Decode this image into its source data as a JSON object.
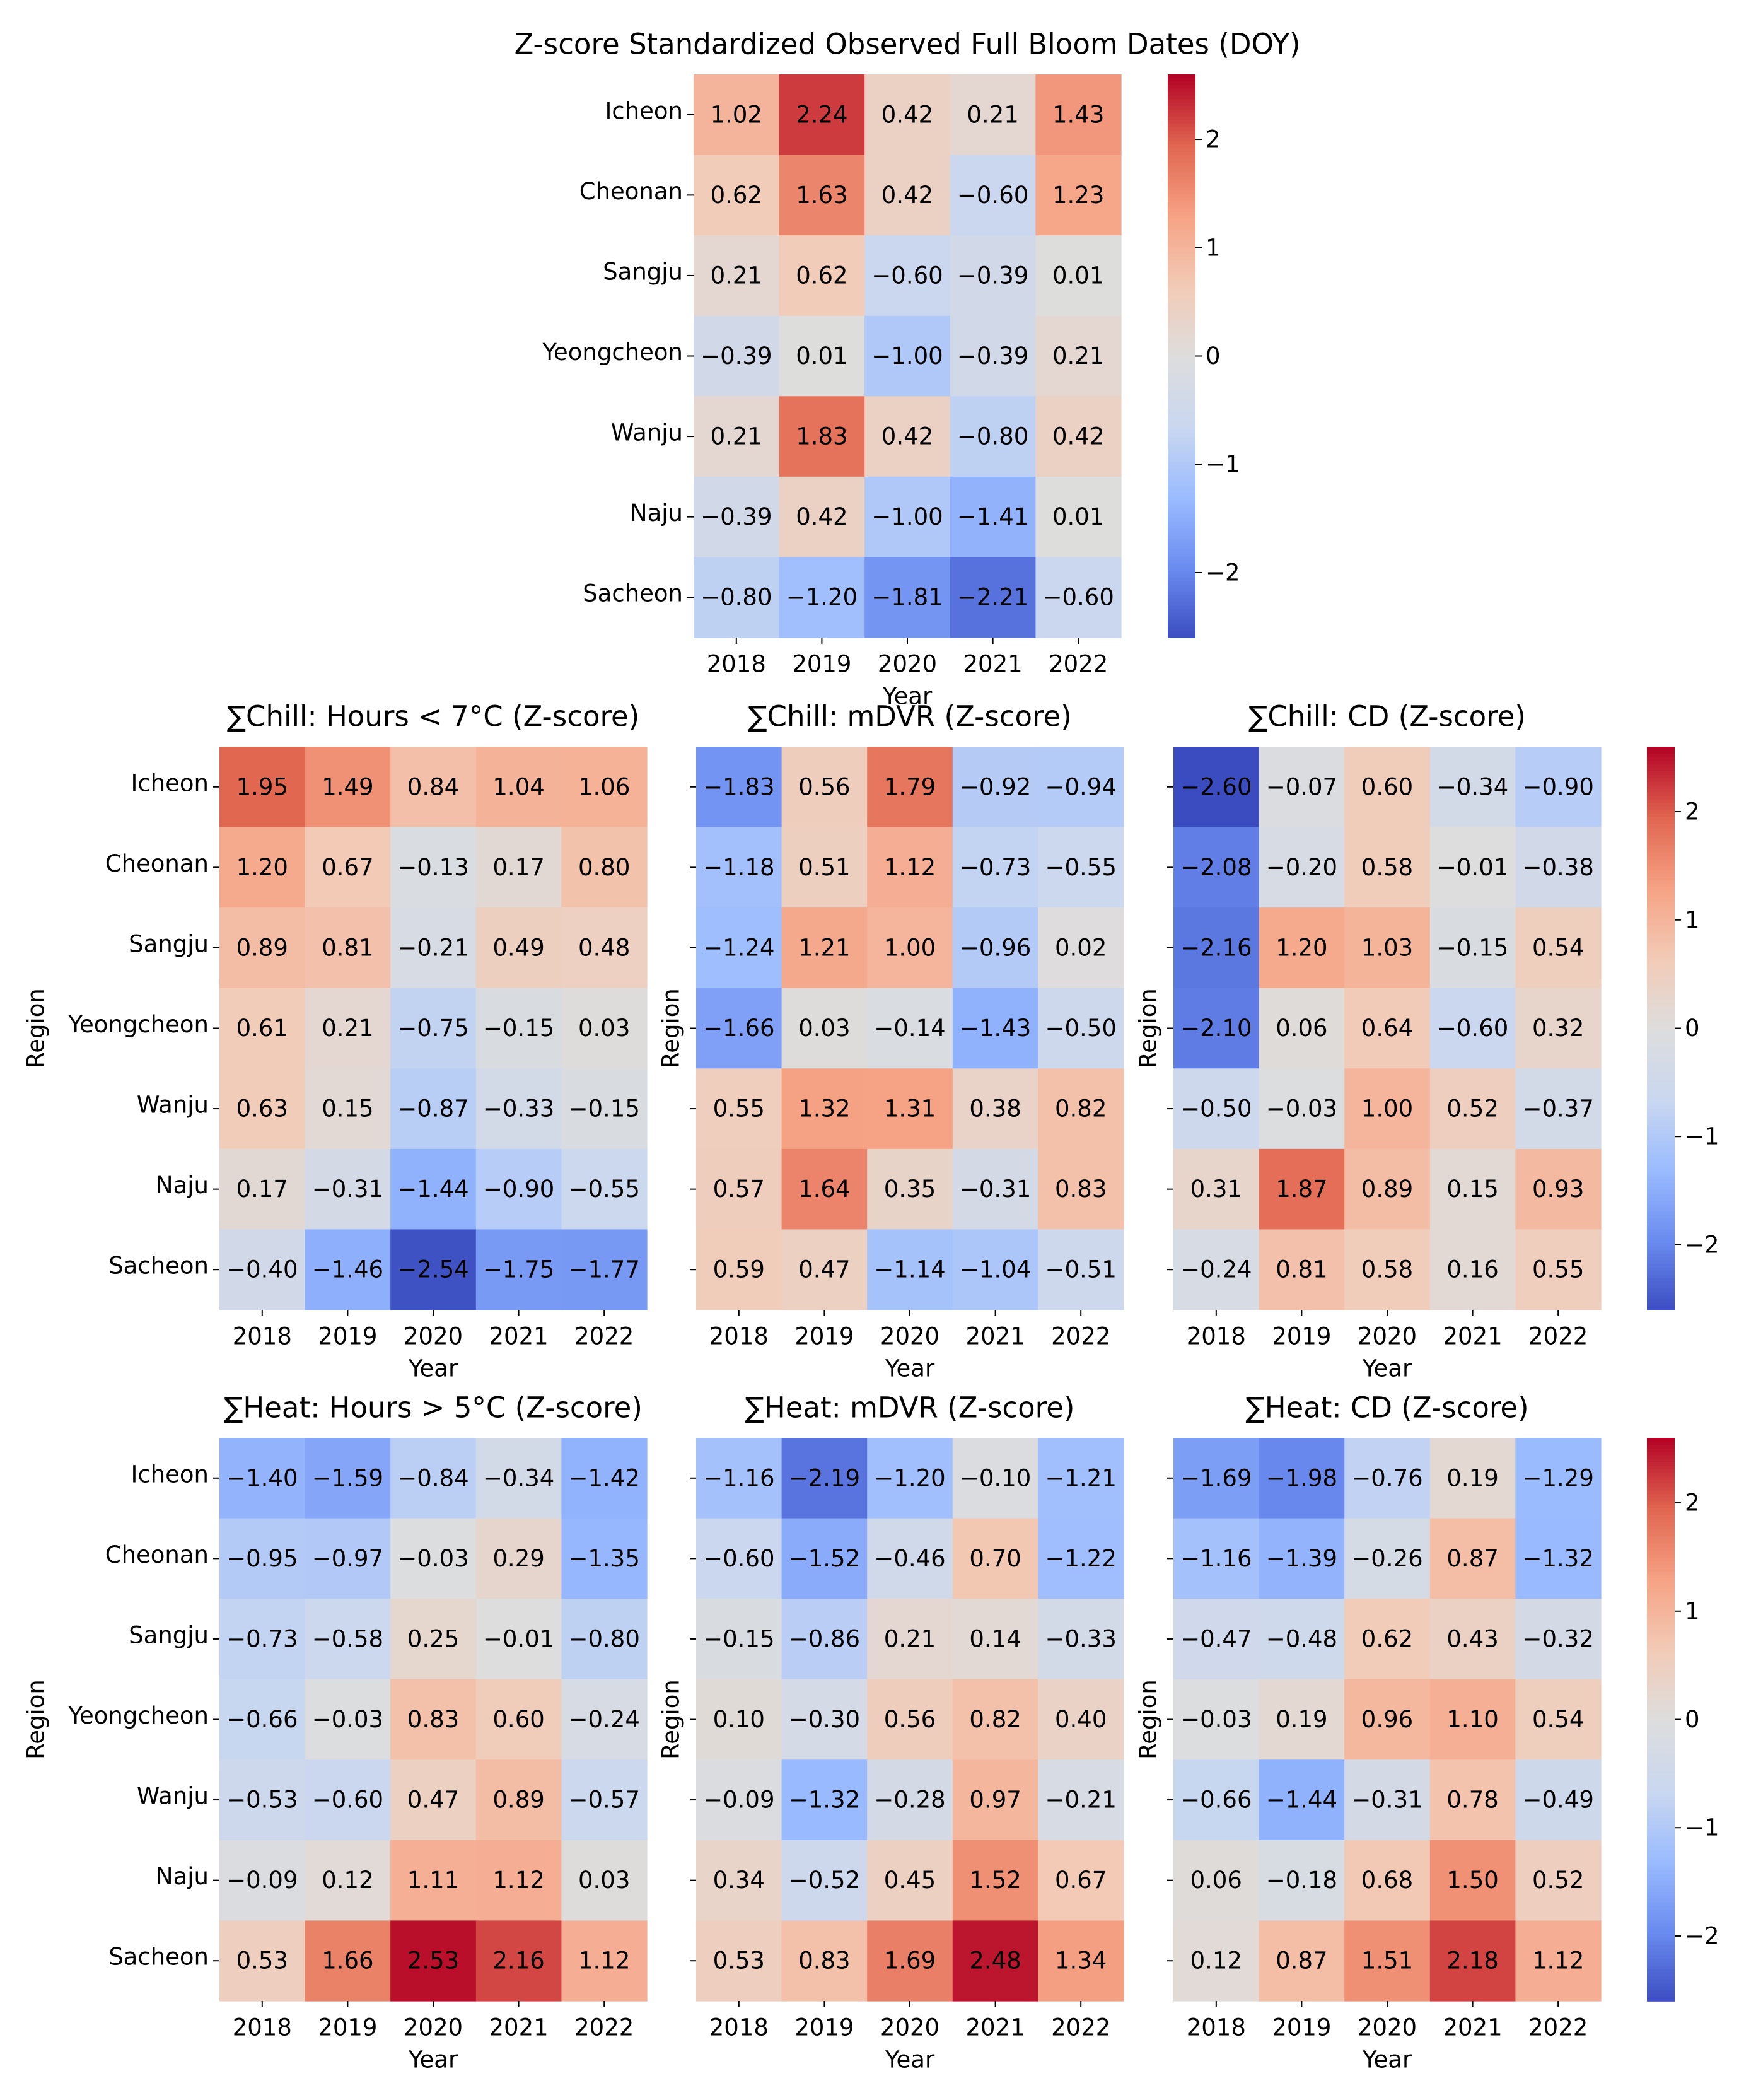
{
  "figure": {
    "colorscale": {
      "vmin": -2.6,
      "vmax": 2.6,
      "stops": [
        "#3b4cc0",
        "#6a8bef",
        "#9abbff",
        "#c9d7f0",
        "#dddddd",
        "#f2cbb7",
        "#f6a385",
        "#e16751",
        "#b40426"
      ]
    }
  },
  "chart_data": [
    {
      "id": "top",
      "type": "heatmap",
      "title": "Z-score Standardized Observed Full Bloom Dates (DOY)",
      "xlabel": "Year",
      "ylabel": "",
      "categories": [
        "2018",
        "2019",
        "2020",
        "2021",
        "2022"
      ],
      "regions": [
        "Icheon",
        "Cheonan",
        "Sangju",
        "Yeongcheon",
        "Wanju",
        "Naju",
        "Sacheon"
      ],
      "values": [
        [
          1.02,
          2.24,
          0.42,
          0.21,
          1.43
        ],
        [
          0.62,
          1.63,
          0.42,
          -0.6,
          1.23
        ],
        [
          0.21,
          0.62,
          -0.6,
          -0.39,
          0.01
        ],
        [
          -0.39,
          0.01,
          -1.0,
          -0.39,
          0.21
        ],
        [
          0.21,
          1.83,
          0.42,
          -0.8,
          0.42
        ],
        [
          -0.39,
          0.42,
          -1.0,
          -1.41,
          0.01
        ],
        [
          -0.8,
          -1.2,
          -1.81,
          -2.21,
          -0.6
        ]
      ],
      "colorbar_ticks": [
        2,
        1,
        0,
        -1,
        -2
      ]
    },
    {
      "id": "chill-hours",
      "type": "heatmap",
      "title": "∑Chill: Hours < 7°C (Z-score)",
      "xlabel": "Year",
      "ylabel": "Region",
      "categories": [
        "2018",
        "2019",
        "2020",
        "2021",
        "2022"
      ],
      "regions": [
        "Icheon",
        "Cheonan",
        "Sangju",
        "Yeongcheon",
        "Wanju",
        "Naju",
        "Sacheon"
      ],
      "values": [
        [
          1.95,
          1.49,
          0.84,
          1.04,
          1.06
        ],
        [
          1.2,
          0.67,
          -0.13,
          0.17,
          0.8
        ],
        [
          0.89,
          0.81,
          -0.21,
          0.49,
          0.48
        ],
        [
          0.61,
          0.21,
          -0.75,
          -0.15,
          0.03
        ],
        [
          0.63,
          0.15,
          -0.87,
          -0.33,
          -0.15
        ],
        [
          0.17,
          -0.31,
          -1.44,
          -0.9,
          -0.55
        ],
        [
          -0.4,
          -1.46,
          -2.54,
          -1.75,
          -1.77
        ]
      ]
    },
    {
      "id": "chill-mdvr",
      "type": "heatmap",
      "title": "∑Chill: mDVR (Z-score)",
      "xlabel": "Year",
      "ylabel": "Region",
      "categories": [
        "2018",
        "2019",
        "2020",
        "2021",
        "2022"
      ],
      "values": [
        [
          -1.83,
          0.56,
          1.79,
          -0.92,
          -0.94
        ],
        [
          -1.18,
          0.51,
          1.12,
          -0.73,
          -0.55
        ],
        [
          -1.24,
          1.21,
          1.0,
          -0.96,
          0.02
        ],
        [
          -1.66,
          0.03,
          -0.14,
          -1.43,
          -0.5
        ],
        [
          0.55,
          1.32,
          1.31,
          0.38,
          0.82
        ],
        [
          0.57,
          1.64,
          0.35,
          -0.31,
          0.83
        ],
        [
          0.59,
          0.47,
          -1.14,
          -1.04,
          -0.51
        ]
      ]
    },
    {
      "id": "chill-cd",
      "type": "heatmap",
      "title": "∑Chill: CD (Z-score)",
      "xlabel": "Year",
      "ylabel": "Region",
      "categories": [
        "2018",
        "2019",
        "2020",
        "2021",
        "2022"
      ],
      "values": [
        [
          -2.6,
          -0.07,
          0.6,
          -0.34,
          -0.9
        ],
        [
          -2.08,
          -0.2,
          0.58,
          -0.01,
          -0.38
        ],
        [
          -2.16,
          1.2,
          1.03,
          -0.15,
          0.54
        ],
        [
          -2.1,
          0.06,
          0.64,
          -0.6,
          0.32
        ],
        [
          -0.5,
          -0.03,
          1.0,
          0.52,
          -0.37
        ],
        [
          0.31,
          1.87,
          0.89,
          0.15,
          0.93
        ],
        [
          -0.24,
          0.81,
          0.58,
          0.16,
          0.55
        ]
      ],
      "colorbar_ticks": [
        2,
        1,
        0,
        -1,
        -2
      ]
    },
    {
      "id": "heat-hours",
      "type": "heatmap",
      "title": "∑Heat: Hours > 5°C (Z-score)",
      "xlabel": "Year",
      "ylabel": "Region",
      "categories": [
        "2018",
        "2019",
        "2020",
        "2021",
        "2022"
      ],
      "regions": [
        "Icheon",
        "Cheonan",
        "Sangju",
        "Yeongcheon",
        "Wanju",
        "Naju",
        "Sacheon"
      ],
      "values": [
        [
          -1.4,
          -1.59,
          -0.84,
          -0.34,
          -1.42
        ],
        [
          -0.95,
          -0.97,
          -0.03,
          0.29,
          -1.35
        ],
        [
          -0.73,
          -0.58,
          0.25,
          -0.01,
          -0.8
        ],
        [
          -0.66,
          -0.03,
          0.83,
          0.6,
          -0.24
        ],
        [
          -0.53,
          -0.6,
          0.47,
          0.89,
          -0.57
        ],
        [
          -0.09,
          0.12,
          1.11,
          1.12,
          0.03
        ],
        [
          0.53,
          1.66,
          2.53,
          2.16,
          1.12
        ]
      ]
    },
    {
      "id": "heat-mdvr",
      "type": "heatmap",
      "title": "∑Heat: mDVR (Z-score)",
      "xlabel": "Year",
      "ylabel": "Region",
      "categories": [
        "2018",
        "2019",
        "2020",
        "2021",
        "2022"
      ],
      "values": [
        [
          -1.16,
          -2.19,
          -1.2,
          -0.1,
          -1.21
        ],
        [
          -0.6,
          -1.52,
          -0.46,
          0.7,
          -1.22
        ],
        [
          -0.15,
          -0.86,
          0.21,
          0.14,
          -0.33
        ],
        [
          0.1,
          -0.3,
          0.56,
          0.82,
          0.4
        ],
        [
          -0.09,
          -1.32,
          -0.28,
          0.97,
          -0.21
        ],
        [
          0.34,
          -0.52,
          0.45,
          1.52,
          0.67
        ],
        [
          0.53,
          0.83,
          1.69,
          2.48,
          1.34
        ]
      ]
    },
    {
      "id": "heat-cd",
      "type": "heatmap",
      "title": "∑Heat: CD (Z-score)",
      "xlabel": "Year",
      "ylabel": "Region",
      "categories": [
        "2018",
        "2019",
        "2020",
        "2021",
        "2022"
      ],
      "values": [
        [
          -1.69,
          -1.98,
          -0.76,
          0.19,
          -1.29
        ],
        [
          -1.16,
          -1.39,
          -0.26,
          0.87,
          -1.32
        ],
        [
          -0.47,
          -0.48,
          0.62,
          0.43,
          -0.32
        ],
        [
          -0.03,
          0.19,
          0.96,
          1.1,
          0.54
        ],
        [
          -0.66,
          -1.44,
          -0.31,
          0.78,
          -0.49
        ],
        [
          0.06,
          -0.18,
          0.68,
          1.5,
          0.52
        ],
        [
          0.12,
          0.87,
          1.51,
          2.18,
          1.12
        ]
      ],
      "colorbar_ticks": [
        2,
        1,
        0,
        -1,
        -2
      ]
    }
  ]
}
